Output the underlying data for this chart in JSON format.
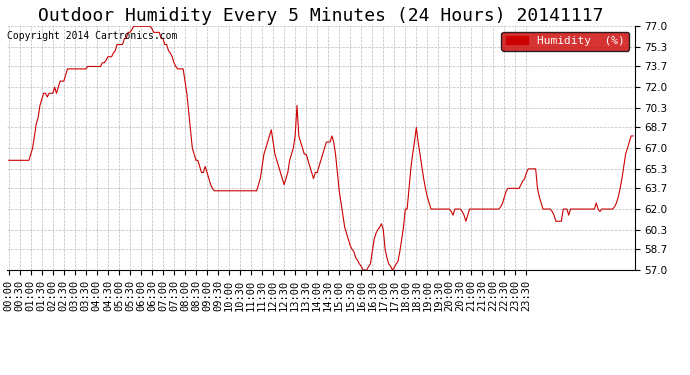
{
  "title": "Outdoor Humidity Every 5 Minutes (24 Hours) 20141117",
  "copyright": "Copyright 2014 Cartronics.com",
  "legend_label": "Humidity  (%)",
  "legend_bg": "#cc0000",
  "line_color": "#cc0000",
  "bg_color": "#ffffff",
  "grid_color": "#aaaaaa",
  "ylim": [
    57.0,
    77.0
  ],
  "yticks": [
    57.0,
    58.7,
    60.3,
    62.0,
    63.7,
    65.3,
    67.0,
    68.7,
    70.3,
    72.0,
    73.7,
    75.3,
    77.0
  ],
  "humidity_values": [
    66.0,
    66.0,
    66.0,
    66.0,
    66.0,
    66.0,
    66.0,
    66.0,
    66.0,
    66.0,
    66.0,
    66.0,
    66.5,
    67.0,
    68.0,
    69.0,
    69.5,
    70.5,
    71.0,
    71.5,
    71.5,
    71.2,
    71.5,
    71.5,
    71.5,
    72.0,
    71.5,
    72.0,
    72.5,
    72.5,
    72.5,
    73.0,
    73.5,
    73.5,
    73.5,
    73.5,
    73.5,
    73.5,
    73.5,
    73.5,
    73.5,
    73.5,
    73.5,
    73.7,
    73.7,
    73.7,
    73.7,
    73.7,
    73.7,
    73.7,
    73.7,
    74.0,
    74.0,
    74.2,
    74.5,
    74.5,
    74.5,
    74.8,
    75.0,
    75.5,
    75.5,
    75.5,
    75.5,
    76.0,
    76.0,
    76.5,
    76.5,
    76.7,
    77.0,
    77.0,
    77.0,
    77.0,
    77.0,
    77.0,
    77.0,
    77.0,
    77.0,
    77.0,
    76.8,
    76.5,
    76.5,
    76.5,
    76.5,
    76.0,
    76.0,
    75.5,
    75.5,
    75.0,
    74.8,
    74.5,
    74.0,
    73.7,
    73.5,
    73.5,
    73.5,
    73.5,
    72.5,
    71.5,
    70.0,
    68.5,
    67.0,
    66.5,
    66.0,
    66.0,
    65.5,
    65.0,
    65.0,
    65.5,
    65.0,
    64.5,
    64.0,
    63.7,
    63.5,
    63.5,
    63.5,
    63.5,
    63.5,
    63.5,
    63.5,
    63.5,
    63.5,
    63.5,
    63.5,
    63.5,
    63.5,
    63.5,
    63.5,
    63.5,
    63.5,
    63.5,
    63.5,
    63.5,
    63.5,
    63.5,
    63.5,
    63.5,
    64.0,
    64.5,
    65.5,
    66.5,
    67.0,
    67.5,
    68.0,
    68.5,
    67.5,
    66.5,
    66.0,
    65.5,
    65.0,
    64.5,
    64.0,
    64.5,
    65.0,
    66.0,
    66.5,
    67.0,
    68.0,
    70.5,
    68.0,
    67.5,
    67.0,
    66.5,
    66.5,
    66.0,
    65.5,
    65.0,
    64.5,
    65.0,
    65.0,
    65.5,
    66.0,
    66.5,
    67.0,
    67.5,
    67.5,
    67.5,
    68.0,
    67.5,
    66.5,
    65.0,
    63.5,
    62.5,
    61.5,
    60.5,
    60.0,
    59.5,
    59.0,
    58.7,
    58.5,
    58.0,
    57.8,
    57.5,
    57.3,
    57.0,
    57.0,
    57.0,
    57.3,
    57.5,
    58.5,
    59.5,
    60.0,
    60.3,
    60.5,
    60.8,
    60.3,
    58.7,
    58.0,
    57.5,
    57.3,
    57.0,
    57.2,
    57.5,
    57.7,
    58.5,
    59.5,
    60.5,
    62.0,
    62.0,
    63.7,
    65.3,
    66.5,
    67.5,
    68.7,
    67.5,
    66.5,
    65.5,
    64.5,
    63.7,
    63.0,
    62.5,
    62.0,
    62.0,
    62.0,
    62.0,
    62.0,
    62.0,
    62.0,
    62.0,
    62.0,
    62.0,
    62.0,
    61.8,
    61.5,
    62.0,
    62.0,
    62.0,
    62.0,
    61.8,
    61.5,
    61.0,
    61.5,
    62.0,
    62.0,
    62.0,
    62.0,
    62.0,
    62.0,
    62.0,
    62.0,
    62.0,
    62.0,
    62.0,
    62.0,
    62.0,
    62.0,
    62.0,
    62.0,
    62.0,
    62.2,
    62.5,
    63.0,
    63.5,
    63.7,
    63.7,
    63.7,
    63.7,
    63.7,
    63.7,
    63.7,
    64.0,
    64.3,
    64.5,
    65.0,
    65.3,
    65.3,
    65.3,
    65.3,
    65.3,
    63.7,
    63.0,
    62.5,
    62.0,
    62.0,
    62.0,
    62.0,
    62.0,
    61.8,
    61.5,
    61.0,
    61.0,
    61.0,
    61.0,
    62.0,
    62.0,
    62.0,
    61.5,
    62.0,
    62.0,
    62.0,
    62.0,
    62.0,
    62.0,
    62.0,
    62.0,
    62.0,
    62.0,
    62.0,
    62.0,
    62.0,
    62.0,
    62.5,
    62.0,
    61.8,
    62.0,
    62.0,
    62.0,
    62.0,
    62.0,
    62.0,
    62.0,
    62.2,
    62.5,
    63.0,
    63.7,
    64.5,
    65.5,
    66.5,
    67.0,
    67.5,
    68.0,
    68.0
  ],
  "xtick_interval": 6,
  "title_fontsize": 13,
  "axis_fontsize": 7.5
}
